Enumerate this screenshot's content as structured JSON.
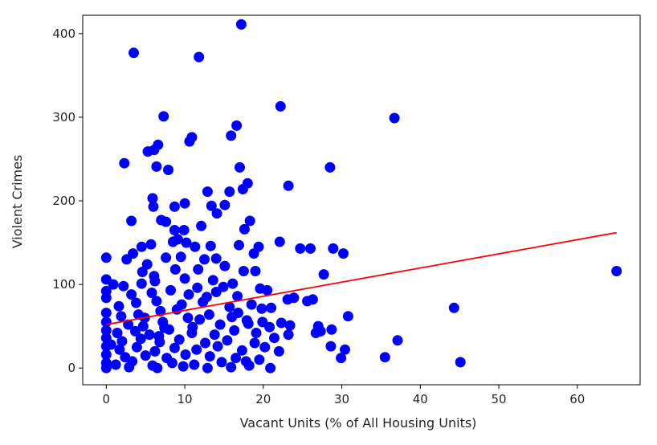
{
  "chart_data": {
    "type": "scatter",
    "title": "",
    "xlabel": "Vacant Units (% of All Housing Units)",
    "ylabel": "Violent Crimes",
    "xlim": [
      -3,
      68
    ],
    "ylim": [
      -20,
      422
    ],
    "x_ticks": [
      0,
      10,
      20,
      30,
      40,
      50,
      60
    ],
    "y_ticks": [
      0,
      100,
      200,
      300,
      400
    ],
    "grid": false,
    "legend": "none",
    "colors": {
      "points": "#0000ff",
      "trendline": "#ff0000",
      "axes": "#000000"
    },
    "points": [
      [
        17.2,
        411
      ],
      [
        3.5,
        377
      ],
      [
        11.8,
        372
      ],
      [
        22.2,
        313
      ],
      [
        36.7,
        299
      ],
      [
        7.3,
        301
      ],
      [
        16.6,
        290
      ],
      [
        10.9,
        276
      ],
      [
        10.6,
        271
      ],
      [
        15.9,
        278
      ],
      [
        6.6,
        267
      ],
      [
        5.3,
        259
      ],
      [
        6.1,
        261
      ],
      [
        2.3,
        245
      ],
      [
        6.4,
        241
      ],
      [
        7.9,
        237
      ],
      [
        17.0,
        240
      ],
      [
        28.5,
        240
      ],
      [
        18.0,
        221
      ],
      [
        17.4,
        214
      ],
      [
        23.2,
        218
      ],
      [
        12.9,
        211
      ],
      [
        15.7,
        211
      ],
      [
        5.9,
        203
      ],
      [
        10.0,
        197
      ],
      [
        6.0,
        193
      ],
      [
        8.7,
        193
      ],
      [
        15.1,
        195
      ],
      [
        13.4,
        194
      ],
      [
        14.1,
        185
      ],
      [
        18.3,
        176
      ],
      [
        7.0,
        177
      ],
      [
        3.2,
        176
      ],
      [
        7.6,
        175
      ],
      [
        8.7,
        165
      ],
      [
        9.9,
        165
      ],
      [
        12.1,
        170
      ],
      [
        17.6,
        166
      ],
      [
        9.1,
        154
      ],
      [
        22.1,
        151
      ],
      [
        10.2,
        150
      ],
      [
        4.5,
        145
      ],
      [
        5.7,
        148
      ],
      [
        8.5,
        151
      ],
      [
        11.3,
        145
      ],
      [
        13.3,
        146
      ],
      [
        16.9,
        147
      ],
      [
        19.4,
        145
      ],
      [
        24.7,
        143
      ],
      [
        26.0,
        143
      ],
      [
        28.9,
        143
      ],
      [
        30.2,
        137
      ],
      [
        0.0,
        132
      ],
      [
        2.6,
        130
      ],
      [
        3.4,
        137
      ],
      [
        5.2,
        124
      ],
      [
        7.6,
        132
      ],
      [
        9.5,
        133
      ],
      [
        12.5,
        130
      ],
      [
        14.0,
        131
      ],
      [
        18.8,
        137
      ],
      [
        8.8,
        118
      ],
      [
        4.6,
        115
      ],
      [
        6.1,
        110
      ],
      [
        11.7,
        118
      ],
      [
        15.1,
        122
      ],
      [
        17.5,
        116
      ],
      [
        19.0,
        116
      ],
      [
        27.7,
        112
      ],
      [
        65.0,
        116
      ],
      [
        0.0,
        106
      ],
      [
        0.9,
        100
      ],
      [
        2.2,
        98
      ],
      [
        4.5,
        101
      ],
      [
        6.2,
        104
      ],
      [
        10.0,
        107
      ],
      [
        13.6,
        105
      ],
      [
        16.1,
        101
      ],
      [
        19.6,
        95
      ],
      [
        20.5,
        93
      ],
      [
        0.0,
        92
      ],
      [
        3.2,
        88
      ],
      [
        5.8,
        90
      ],
      [
        8.2,
        93
      ],
      [
        11.6,
        96
      ],
      [
        14.0,
        91
      ],
      [
        16.7,
        86
      ],
      [
        23.1,
        82
      ],
      [
        23.9,
        84
      ],
      [
        25.6,
        80
      ],
      [
        26.3,
        82
      ],
      [
        0.0,
        84
      ],
      [
        1.6,
        74
      ],
      [
        3.8,
        78
      ],
      [
        6.4,
        80
      ],
      [
        9.6,
        76
      ],
      [
        12.3,
        79
      ],
      [
        15.7,
        73
      ],
      [
        18.5,
        76
      ],
      [
        19.8,
        71
      ],
      [
        21.0,
        72
      ],
      [
        44.3,
        72
      ],
      [
        0.0,
        66
      ],
      [
        1.9,
        62
      ],
      [
        4.1,
        64
      ],
      [
        6.9,
        68
      ],
      [
        10.4,
        60
      ],
      [
        13.1,
        64
      ],
      [
        16.0,
        61
      ],
      [
        17.9,
        57
      ],
      [
        19.9,
        55
      ],
      [
        30.8,
        62
      ],
      [
        0.0,
        55
      ],
      [
        2.8,
        52
      ],
      [
        4.7,
        50
      ],
      [
        7.2,
        55
      ],
      [
        11.0,
        49
      ],
      [
        14.5,
        52
      ],
      [
        18.1,
        53
      ],
      [
        20.8,
        49
      ],
      [
        22.3,
        54
      ],
      [
        23.4,
        51
      ],
      [
        27.0,
        50
      ],
      [
        0.0,
        45
      ],
      [
        1.4,
        42
      ],
      [
        3.7,
        44
      ],
      [
        5.5,
        40
      ],
      [
        8.0,
        46
      ],
      [
        10.9,
        42
      ],
      [
        13.8,
        40
      ],
      [
        16.3,
        45
      ],
      [
        19.1,
        42
      ],
      [
        23.2,
        40
      ],
      [
        26.7,
        42
      ],
      [
        27.3,
        44
      ],
      [
        28.7,
        46
      ],
      [
        0.0,
        36
      ],
      [
        2.0,
        32
      ],
      [
        4.4,
        35
      ],
      [
        6.8,
        31
      ],
      [
        9.3,
        34
      ],
      [
        12.6,
        30
      ],
      [
        15.4,
        33
      ],
      [
        18.9,
        30
      ],
      [
        21.4,
        36
      ],
      [
        37.1,
        33
      ],
      [
        0.0,
        26
      ],
      [
        1.7,
        22
      ],
      [
        3.9,
        25
      ],
      [
        6.2,
        20
      ],
      [
        8.7,
        24
      ],
      [
        11.5,
        22
      ],
      [
        14.2,
        26
      ],
      [
        17.3,
        21
      ],
      [
        20.2,
        25
      ],
      [
        28.6,
        26
      ],
      [
        30.4,
        22
      ],
      [
        0.0,
        16
      ],
      [
        2.4,
        13
      ],
      [
        5.0,
        15
      ],
      [
        7.7,
        12
      ],
      [
        10.1,
        16
      ],
      [
        13.2,
        14
      ],
      [
        16.5,
        12
      ],
      [
        19.5,
        10
      ],
      [
        22.0,
        20
      ],
      [
        29.9,
        12
      ],
      [
        35.5,
        13
      ],
      [
        0.0,
        6
      ],
      [
        1.2,
        4
      ],
      [
        3.3,
        8
      ],
      [
        5.9,
        3
      ],
      [
        8.4,
        6
      ],
      [
        11.2,
        4
      ],
      [
        14.7,
        7
      ],
      [
        18.2,
        3
      ],
      [
        20.9,
        0
      ],
      [
        45.1,
        7
      ],
      [
        0.0,
        0
      ],
      [
        2.9,
        1
      ],
      [
        6.5,
        0
      ],
      [
        9.8,
        2
      ],
      [
        12.9,
        0
      ],
      [
        15.9,
        1
      ],
      [
        17.8,
        8
      ],
      [
        0.6,
        28
      ],
      [
        4.9,
        60
      ],
      [
        7.4,
        48
      ],
      [
        9.0,
        70
      ],
      [
        11.9,
        58
      ],
      [
        12.8,
        85
      ],
      [
        14.9,
        97
      ],
      [
        16.8,
        66
      ],
      [
        6.7,
        38
      ],
      [
        10.5,
        88
      ]
    ],
    "trendline": {
      "x": [
        0.0,
        65.0
      ],
      "y": [
        52,
        162
      ]
    }
  }
}
